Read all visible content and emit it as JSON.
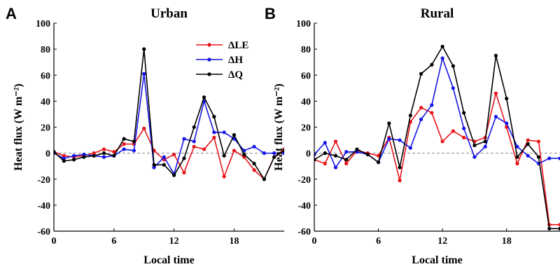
{
  "colors": {
    "dLE": "#e8141a",
    "dH": "#1515e6",
    "dQ": "#000000",
    "zero_line": "#888888"
  },
  "chart_data": [
    {
      "type": "line",
      "panel_letter": "A",
      "title": "Urban",
      "xlabel": "Local time",
      "ylabel": "Heat flux (W m⁻²)",
      "xlim": [
        0,
        23
      ],
      "ylim": [
        -60,
        100
      ],
      "xticks": [
        0,
        6,
        12,
        18
      ],
      "yticks": [
        -60,
        -40,
        -20,
        0,
        20,
        40,
        60,
        80,
        100
      ],
      "zero_line": true,
      "legend": {
        "placement": "top-right",
        "entries": [
          "ΔLE",
          "ΔH",
          "ΔQ"
        ]
      },
      "x": [
        0,
        1,
        2,
        3,
        4,
        5,
        6,
        7,
        8,
        9,
        10,
        11,
        12,
        13,
        14,
        15,
        16,
        17,
        18,
        19,
        20,
        21,
        22,
        23
      ],
      "series": [
        {
          "name": "ΔLE",
          "color_key": "dLE",
          "values": [
            1,
            -2,
            -3,
            -2,
            0,
            3,
            1,
            7,
            7,
            19,
            2,
            -5,
            -1,
            -15,
            5,
            3,
            12,
            -18,
            2,
            -3,
            -13,
            -20,
            -3,
            3
          ]
        },
        {
          "name": "ΔH",
          "color_key": "dH",
          "values": [
            0,
            -4,
            -2,
            -1,
            -2,
            -3,
            -2,
            3,
            2,
            61,
            -11,
            -3,
            -16,
            11,
            9,
            40,
            16,
            16,
            11,
            2,
            5,
            0,
            0,
            0
          ]
        },
        {
          "name": "ΔQ",
          "color_key": "dQ",
          "values": [
            1,
            -6,
            -5,
            -3,
            -2,
            0,
            -2,
            11,
            9,
            80,
            -9,
            -9,
            -17,
            -4,
            20,
            43,
            28,
            -2,
            14,
            -1,
            -8,
            -20,
            -3,
            2
          ]
        }
      ]
    },
    {
      "type": "line",
      "panel_letter": "B",
      "title": "Rural",
      "xlabel": "Local time",
      "ylabel": "Heat flux (W m⁻²)",
      "xlim": [
        0,
        23
      ],
      "ylim": [
        -60,
        100
      ],
      "xticks": [
        0,
        6,
        12,
        18
      ],
      "yticks": [
        -60,
        -40,
        -20,
        0,
        20,
        40,
        60,
        80,
        100
      ],
      "zero_line": true,
      "x": [
        0,
        1,
        2,
        3,
        4,
        5,
        6,
        7,
        8,
        9,
        10,
        11,
        12,
        13,
        14,
        15,
        16,
        17,
        18,
        19,
        20,
        21,
        22,
        23
      ],
      "series": [
        {
          "name": "ΔLE",
          "color_key": "dLE",
          "values": [
            -5,
            -8,
            9,
            -8,
            2,
            0,
            -2,
            12,
            -21,
            24,
            35,
            31,
            9,
            17,
            12,
            9,
            12,
            46,
            20,
            -8,
            10,
            9,
            -55,
            -55
          ]
        },
        {
          "name": "ΔH",
          "color_key": "dH",
          "values": [
            -1,
            8,
            -11,
            1,
            1,
            -1,
            -7,
            11,
            10,
            4,
            26,
            37,
            73,
            50,
            19,
            -3,
            5,
            28,
            23,
            5,
            -2,
            -8,
            -4,
            -4
          ]
        },
        {
          "name": "ΔQ",
          "color_key": "dQ",
          "values": [
            -5,
            0,
            -2,
            -5,
            3,
            -1,
            -7,
            23,
            -11,
            29,
            61,
            68,
            82,
            67,
            31,
            6,
            9,
            75,
            42,
            -3,
            7,
            -3,
            -58,
            -58
          ]
        }
      ]
    }
  ]
}
